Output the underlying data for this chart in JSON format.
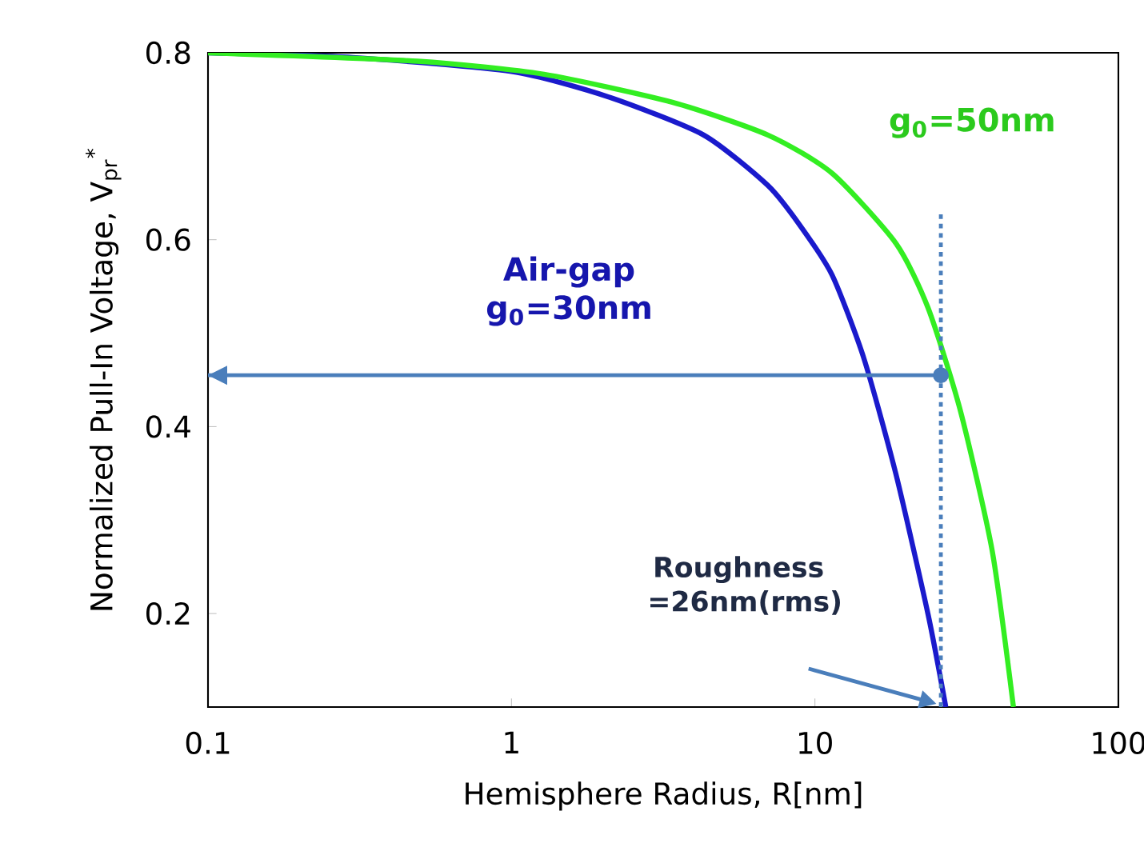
{
  "chart_data": {
    "type": "line",
    "xlabel": "Hemisphere Radius, R[nm]",
    "ylabel": "Normalized Pull-In Voltage, V$_{pr}$$^{*}$",
    "log": "x",
    "xlim": [
      0.1,
      100
    ],
    "ylim": [
      0.1,
      0.8
    ],
    "xticks": [
      0.1,
      1,
      10,
      100
    ],
    "yticks": [
      0.2,
      0.4,
      0.6,
      0.8
    ],
    "grid": false,
    "legend": false,
    "series": [
      {
        "name": "Air-gap g$_{0}$=30nm",
        "color": "#1a1acc",
        "x": [
          0.1,
          0.3,
          1.0,
          2.08,
          4.3,
          7.0,
          8.9,
          11.4,
          14.5,
          18.5,
          23.6,
          27.0
        ],
        "values": [
          0.8,
          0.795,
          0.78,
          0.753,
          0.712,
          0.658,
          0.616,
          0.562,
          0.473,
          0.349,
          0.199,
          0.1
        ]
      },
      {
        "name": "g$_{0}$=50nm",
        "color": "#33ee22",
        "x": [
          0.1,
          0.49,
          1.28,
          3.39,
          7.0,
          11.4,
          18.5,
          23.6,
          30.1,
          38.4,
          45.1
        ],
        "values": [
          0.8,
          0.791,
          0.777,
          0.747,
          0.712,
          0.671,
          0.596,
          0.527,
          0.418,
          0.267,
          0.1
        ]
      },
      {
        "color": "#4a7ebb",
        "line_style": "dotted",
        "x": [
          26,
          26
        ],
        "values": [
          0.1,
          0.63
        ]
      },
      {
        "color": "#4a7ebb",
        "x": [
          26,
          0.1
        ],
        "values": [
          0.455,
          0.455
        ]
      },
      {
        "type": "scatter",
        "marker": "circle",
        "color": "#4a7ebb",
        "x": [
          26
        ],
        "values": [
          0.455
        ]
      }
    ],
    "annotations": [
      "Roughness =26nm(rms)"
    ]
  }
}
